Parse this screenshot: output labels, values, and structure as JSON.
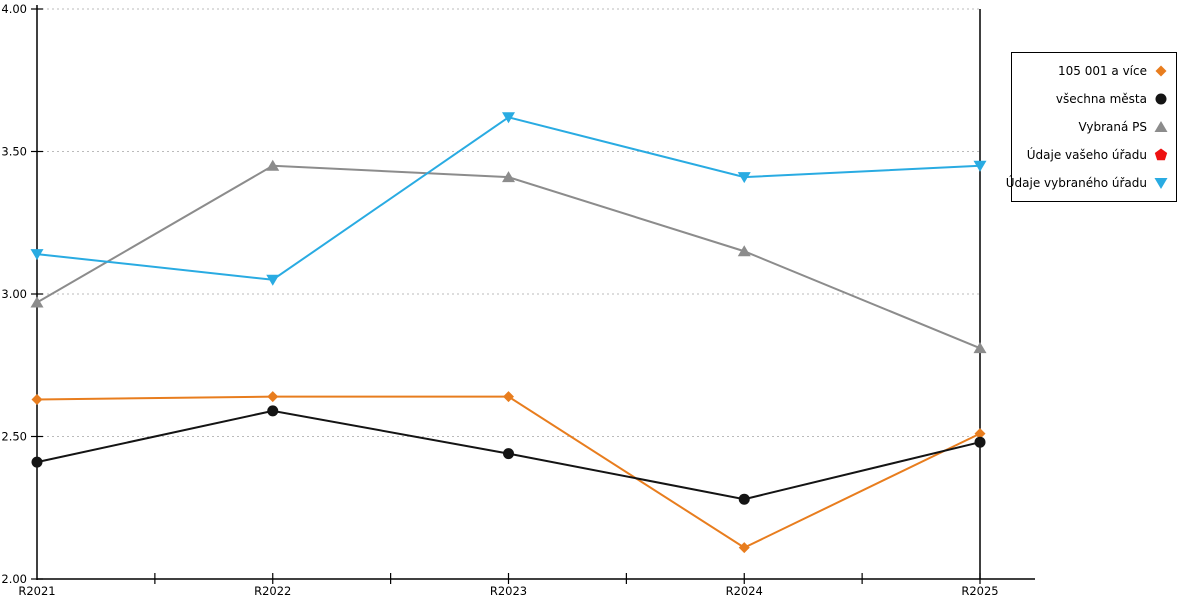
{
  "chart_data": {
    "type": "line",
    "title": "",
    "xlabel": "",
    "ylabel": "",
    "categories": [
      "R2021",
      "R2022",
      "R2023",
      "R2024",
      "R2025"
    ],
    "series": [
      {
        "name": "105 001 a více",
        "color": "#E87D1E",
        "marker": "diamond",
        "values": [
          2.63,
          2.64,
          2.64,
          2.11,
          2.51
        ]
      },
      {
        "name": "všechna města",
        "color": "#141414",
        "marker": "circle",
        "values": [
          2.41,
          2.59,
          2.44,
          2.28,
          2.48
        ]
      },
      {
        "name": "Vybraná PS",
        "color": "#8C8C8C",
        "marker": "triangle-up",
        "values": [
          2.97,
          3.45,
          3.41,
          3.15,
          2.81
        ]
      },
      {
        "name": "Údaje vašeho úřadu",
        "color": "#EE1111",
        "marker": "pentagon",
        "values": []
      },
      {
        "name": "Údaje vybraného úřadu",
        "color": "#29ABE2",
        "marker": "triangle-down",
        "values": [
          3.14,
          3.05,
          3.62,
          3.41,
          3.45
        ]
      }
    ],
    "ylim": [
      2.0,
      4.0
    ],
    "yticks": [
      2.0,
      2.5,
      3.0,
      3.5,
      4.0
    ],
    "ytick_labels": [
      "2.00",
      "2.50",
      "3.00",
      "3.50",
      "4.00"
    ],
    "grid": "horizontal-dotted",
    "gridline_color": "#BBBBBB",
    "axis_color": "#000000",
    "legend_position": "right"
  }
}
